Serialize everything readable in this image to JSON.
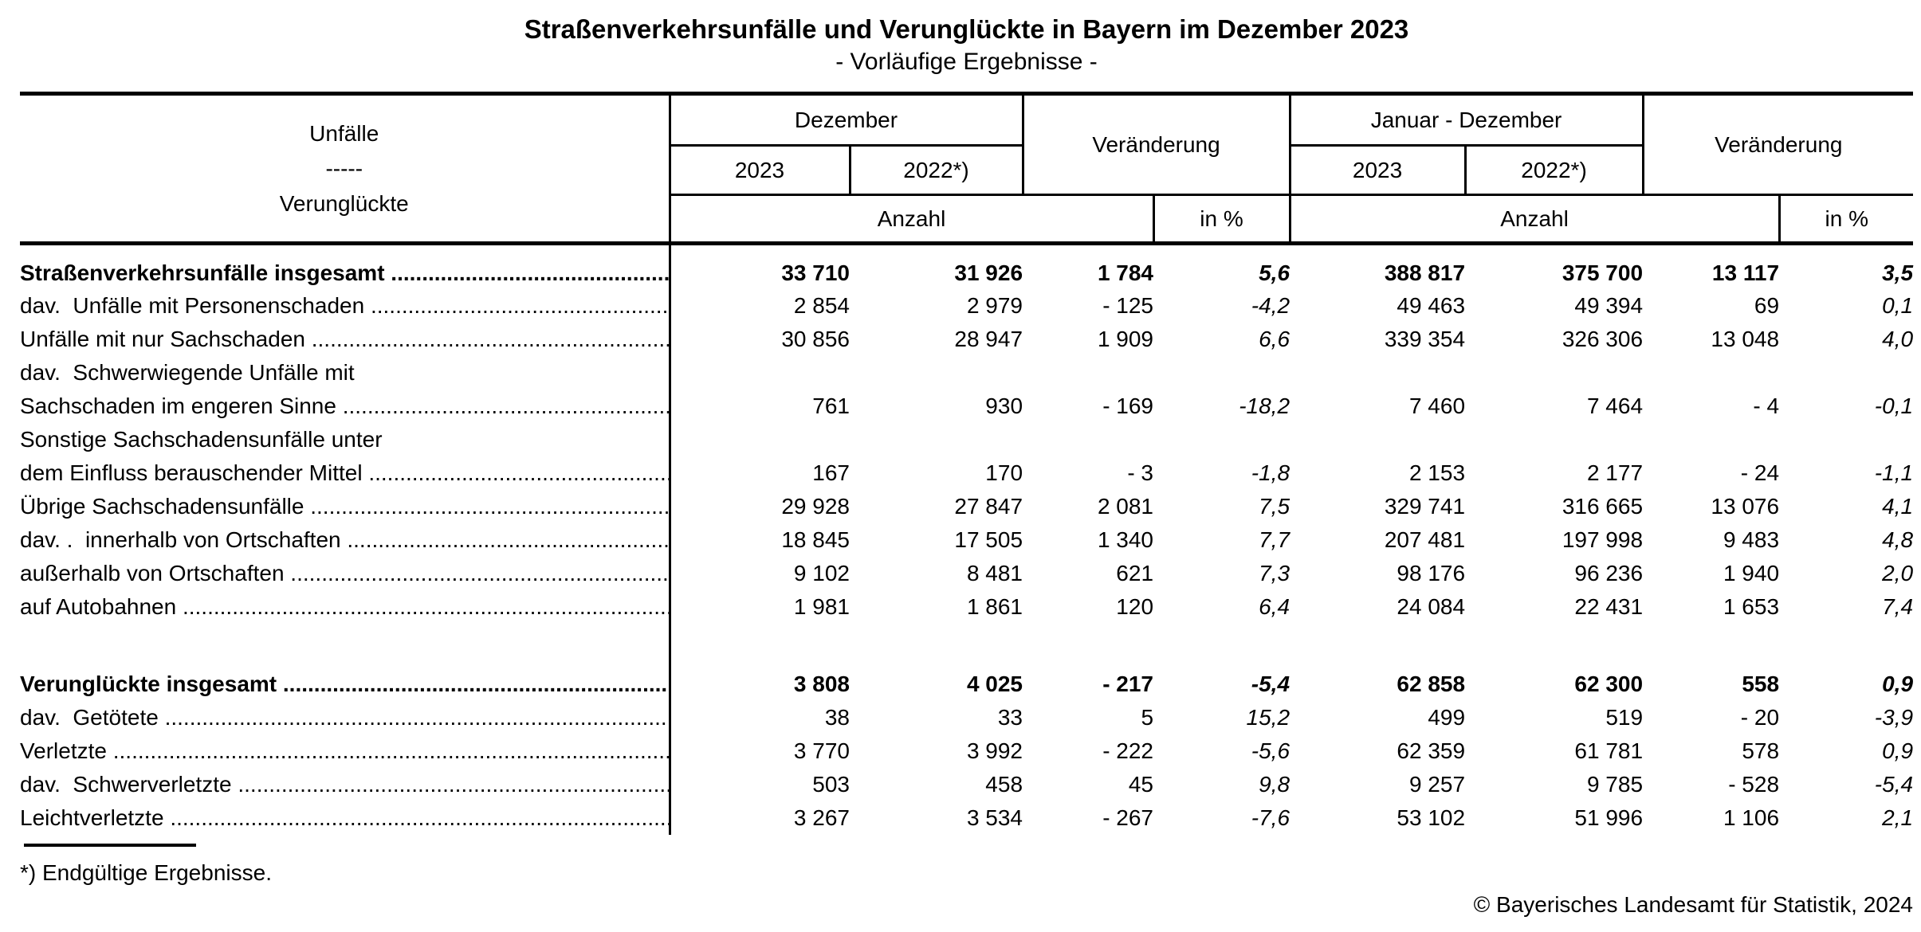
{
  "page": {
    "title": "Straßenverkehrsunfälle und Verunglückte in Bayern im Dezember 2023",
    "subtitle": "- Vorläufige Ergebnisse -",
    "footnote": "*) Endgültige Ergebnisse.",
    "copyright": "© Bayerisches Landesamt für Statistik, 2024"
  },
  "table": {
    "stub": [
      "Unfälle",
      "-----",
      "Verunglückte"
    ],
    "header": {
      "dezember": "Dezember",
      "jan_dez": "Januar - Dezember",
      "veraenderung": "Veränderung",
      "y2023": "2023",
      "y2022": "2022*)",
      "anzahl": "Anzahl",
      "in_pct": "in %"
    },
    "leader_dots": "..............................................................................................................",
    "rows": [
      {
        "label": "Straßenverkehrsunfälle insgesamt",
        "indent": 0,
        "bold": true,
        "leaders": true,
        "values": [
          "33 710",
          "31 926",
          "1 784",
          "5,6",
          "388 817",
          "375 700",
          "13 117",
          "3,5"
        ]
      },
      {
        "label": "dav.  Unfälle mit Personenschaden",
        "indent": 0,
        "bold": false,
        "leaders": true,
        "values": [
          "2 854",
          "2 979",
          "- 125",
          "-4,2",
          "49 463",
          "49 394",
          "69",
          "0,1"
        ]
      },
      {
        "label": "Unfälle mit nur Sachschaden",
        "indent": 1,
        "bold": false,
        "leaders": true,
        "values": [
          "30 856",
          "28 947",
          "1 909",
          "6,6",
          "339 354",
          "326 306",
          "13 048",
          "4,0"
        ]
      },
      {
        "label": "dav.  Schwerwiegende Unfälle mit",
        "indent": 1,
        "bold": false,
        "leaders": false,
        "values": [
          "",
          "",
          "",
          "",
          "",
          "",
          "",
          ""
        ]
      },
      {
        "label": "Sachschaden im engeren Sinne",
        "indent": 3,
        "bold": false,
        "leaders": true,
        "values": [
          "761",
          "930",
          "- 169",
          "-18,2",
          "7 460",
          "7 464",
          "- 4",
          "-0,1"
        ]
      },
      {
        "label": "Sonstige Sachschadensunfälle unter",
        "indent": 2,
        "bold": false,
        "leaders": false,
        "values": [
          "",
          "",
          "",
          "",
          "",
          "",
          "",
          ""
        ]
      },
      {
        "label": "dem Einfluss berauschender Mittel",
        "indent": 3,
        "bold": false,
        "leaders": true,
        "values": [
          "167",
          "170",
          "- 3",
          "-1,8",
          "2 153",
          "2 177",
          "- 24",
          "-1,1"
        ]
      },
      {
        "label": "Übrige Sachschadensunfälle",
        "indent": 2,
        "bold": false,
        "leaders": true,
        "values": [
          "29 928",
          "27 847",
          "2 081",
          "7,5",
          "329 741",
          "316 665",
          "13 076",
          "4,1"
        ]
      },
      {
        "label": "dav. .  innerhalb von Ortschaften",
        "indent": 2,
        "bold": false,
        "leaders": true,
        "values": [
          "18 845",
          "17 505",
          "1 340",
          "7,7",
          "207 481",
          "197 998",
          "9 483",
          "4,8"
        ]
      },
      {
        "label": "außerhalb von Ortschaften",
        "indent": 4,
        "bold": false,
        "leaders": true,
        "values": [
          "9 102",
          "8 481",
          "621",
          "7,3",
          "98 176",
          "96 236",
          "1 940",
          "2,0"
        ]
      },
      {
        "label": "auf Autobahnen",
        "indent": 4,
        "bold": false,
        "leaders": true,
        "values": [
          "1 981",
          "1 861",
          "120",
          "6,4",
          "24 084",
          "22 431",
          "1 653",
          "7,4"
        ]
      },
      {
        "spacer": true
      },
      {
        "label": "Verunglückte insgesamt",
        "indent": 0,
        "bold": true,
        "leaders": true,
        "values": [
          "3 808",
          "4 025",
          "- 217",
          "-5,4",
          "62 858",
          "62 300",
          "558",
          "0,9"
        ]
      },
      {
        "label": "dav.  Getötete",
        "indent": 0,
        "bold": false,
        "leaders": true,
        "values": [
          "38",
          "33",
          "5",
          "15,2",
          "499",
          "519",
          "- 20",
          "-3,9"
        ]
      },
      {
        "label": "Verletzte",
        "indent": 1,
        "bold": false,
        "leaders": true,
        "values": [
          "3 770",
          "3 992",
          "- 222",
          "-5,6",
          "62 359",
          "61 781",
          "578",
          "0,9"
        ]
      },
      {
        "label": "dav.  Schwerverletzte",
        "indent": 1,
        "bold": false,
        "leaders": true,
        "values": [
          "503",
          "458",
          "45",
          "9,8",
          "9 257",
          "9 785",
          "- 528",
          "-5,4"
        ]
      },
      {
        "label": "Leichtverletzte",
        "indent": 2,
        "bold": false,
        "leaders": true,
        "values": [
          "3 267",
          "3 534",
          "- 267",
          "-7,6",
          "53 102",
          "51 996",
          "1 106",
          "2,1"
        ]
      }
    ]
  }
}
